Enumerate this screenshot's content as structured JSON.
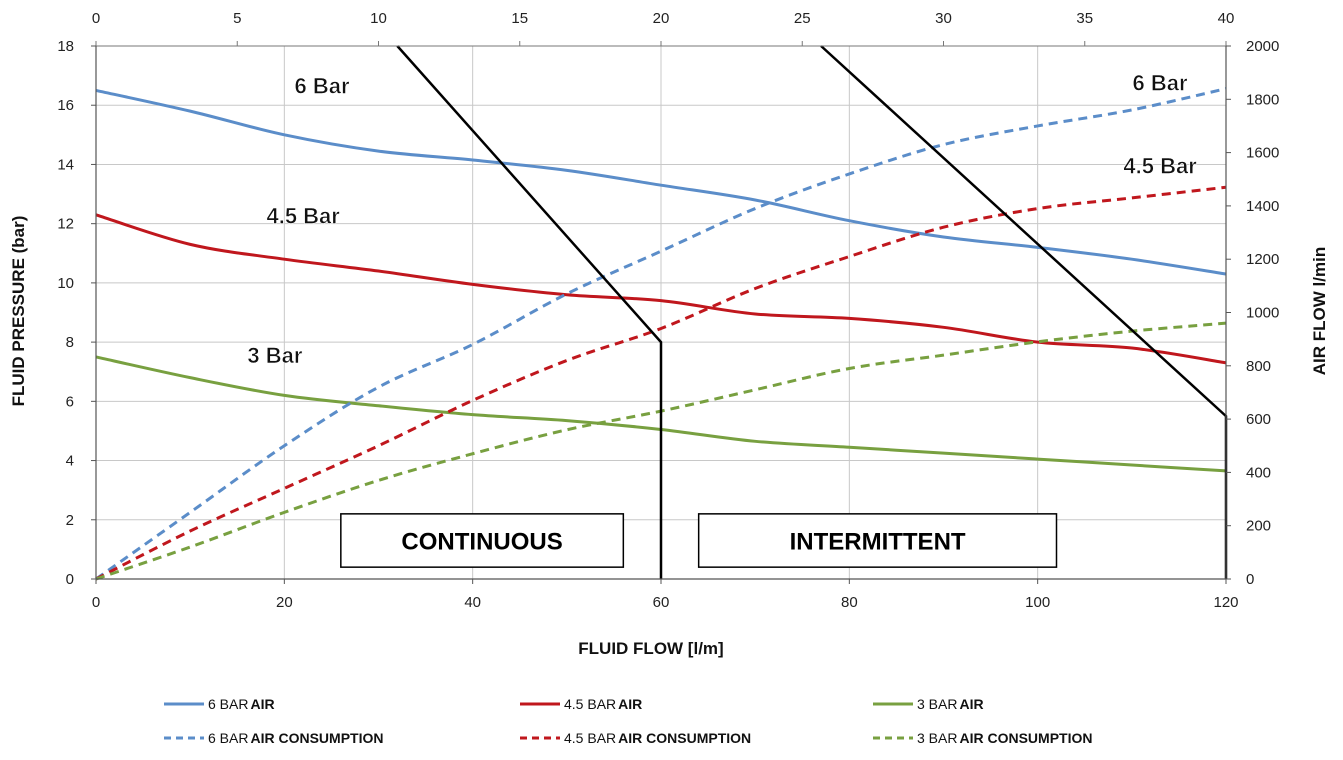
{
  "chart_data": {
    "type": "line",
    "xlabel": "FLUID FLOW [l/m]",
    "ylabel": "FLUID PRESSURE (bar)",
    "y2label": "AIR FLOW l/min",
    "xlim": [
      0,
      120
    ],
    "ylim": [
      0,
      18
    ],
    "y2lim": [
      0,
      2000
    ],
    "x2lim": [
      0,
      40
    ],
    "xticks": [
      "0",
      "20",
      "40",
      "60",
      "80",
      "100",
      "120"
    ],
    "x2ticks": [
      "0",
      "5",
      "10",
      "15",
      "20",
      "25",
      "30",
      "35",
      "40"
    ],
    "yticks": [
      "0",
      "2",
      "4",
      "6",
      "8",
      "10",
      "12",
      "14",
      "16",
      "18"
    ],
    "y2ticks": [
      "0",
      "200",
      "400",
      "600",
      "800",
      "1000",
      "1200",
      "1400",
      "1600",
      "1800",
      "2000"
    ],
    "grid": true,
    "legend_position": "bottom",
    "colors": {
      "blue": "#5B8DC9",
      "red": "#C0171D",
      "green": "#78A040",
      "boundary": "#000000"
    },
    "series": [
      {
        "name": "6 BAR AIR",
        "color": "#5B8DC9",
        "dash": false,
        "axis": "left",
        "points": [
          [
            0,
            16.5
          ],
          [
            10,
            15.8
          ],
          [
            20,
            15.0
          ],
          [
            30,
            14.45
          ],
          [
            40,
            14.15
          ],
          [
            50,
            13.8
          ],
          [
            60,
            13.3
          ],
          [
            70,
            12.8
          ],
          [
            80,
            12.1
          ],
          [
            90,
            11.55
          ],
          [
            100,
            11.2
          ],
          [
            110,
            10.8
          ],
          [
            120,
            10.3
          ]
        ]
      },
      {
        "name": "4.5 BAR AIR",
        "color": "#C0171D",
        "dash": false,
        "axis": "left",
        "points": [
          [
            0,
            12.3
          ],
          [
            10,
            11.3
          ],
          [
            20,
            10.8
          ],
          [
            30,
            10.4
          ],
          [
            40,
            9.95
          ],
          [
            50,
            9.6
          ],
          [
            60,
            9.4
          ],
          [
            70,
            8.95
          ],
          [
            80,
            8.8
          ],
          [
            90,
            8.5
          ],
          [
            100,
            8.0
          ],
          [
            110,
            7.8
          ],
          [
            120,
            7.3
          ]
        ]
      },
      {
        "name": "3 BAR AIR",
        "color": "#78A040",
        "dash": false,
        "axis": "left",
        "points": [
          [
            0,
            7.5
          ],
          [
            10,
            6.8
          ],
          [
            20,
            6.2
          ],
          [
            30,
            5.85
          ],
          [
            40,
            5.55
          ],
          [
            50,
            5.35
          ],
          [
            60,
            5.05
          ],
          [
            70,
            4.65
          ],
          [
            80,
            4.45
          ],
          [
            90,
            4.25
          ],
          [
            100,
            4.05
          ],
          [
            110,
            3.85
          ],
          [
            120,
            3.65
          ]
        ]
      },
      {
        "name": "6 BAR AIR CONSUMPTION",
        "color": "#5B8DC9",
        "dash": true,
        "axis": "right",
        "points": [
          [
            0,
            0
          ],
          [
            10,
            250
          ],
          [
            20,
            500
          ],
          [
            30,
            720
          ],
          [
            40,
            880
          ],
          [
            50,
            1070
          ],
          [
            60,
            1230
          ],
          [
            70,
            1390
          ],
          [
            80,
            1520
          ],
          [
            90,
            1630
          ],
          [
            100,
            1700
          ],
          [
            110,
            1760
          ],
          [
            120,
            1840
          ]
        ]
      },
      {
        "name": "4.5 BAR AIR CONSUMPTION",
        "color": "#C0171D",
        "dash": true,
        "axis": "right",
        "points": [
          [
            0,
            0
          ],
          [
            10,
            180
          ],
          [
            20,
            340
          ],
          [
            30,
            500
          ],
          [
            40,
            670
          ],
          [
            50,
            820
          ],
          [
            60,
            940
          ],
          [
            70,
            1090
          ],
          [
            80,
            1210
          ],
          [
            90,
            1320
          ],
          [
            100,
            1390
          ],
          [
            110,
            1430
          ],
          [
            120,
            1470
          ]
        ]
      },
      {
        "name": "3 BAR AIR CONSUMPTION",
        "color": "#78A040",
        "dash": true,
        "axis": "right",
        "points": [
          [
            0,
            0
          ],
          [
            10,
            120
          ],
          [
            20,
            250
          ],
          [
            30,
            370
          ],
          [
            40,
            470
          ],
          [
            50,
            560
          ],
          [
            60,
            630
          ],
          [
            70,
            710
          ],
          [
            80,
            790
          ],
          [
            90,
            840
          ],
          [
            100,
            890
          ],
          [
            110,
            930
          ],
          [
            120,
            960
          ]
        ]
      }
    ],
    "boundaries": [
      {
        "points": [
          [
            32,
            18
          ],
          [
            60,
            8
          ],
          [
            60,
            0
          ]
        ]
      },
      {
        "points": [
          [
            77,
            18
          ],
          [
            120,
            5.5
          ],
          [
            120,
            0
          ]
        ]
      }
    ],
    "curve_labels": [
      {
        "text": "6 Bar",
        "x": 24,
        "y": 16.4
      },
      {
        "text": "4.5 Bar",
        "x": 22,
        "y": 12.0
      },
      {
        "text": "3 Bar",
        "x": 19,
        "y": 7.3
      },
      {
        "text": "6 Bar",
        "x": 113,
        "y": 16.5
      },
      {
        "text": "4.5 Bar",
        "x": 113,
        "y": 13.7
      }
    ],
    "regions": [
      {
        "label": "CONTINUOUS",
        "x": [
          26,
          56
        ],
        "y": [
          0.4,
          2.2
        ]
      },
      {
        "label": "INTERMITTENT",
        "x": [
          64,
          102
        ],
        "y": [
          0.4,
          2.2
        ]
      }
    ],
    "legend": [
      {
        "prefix": "6 BAR",
        "suffix": "AIR",
        "color": "#5B8DC9",
        "dash": false
      },
      {
        "prefix": "4.5 BAR",
        "suffix": "AIR",
        "color": "#C0171D",
        "dash": false
      },
      {
        "prefix": "3 BAR",
        "suffix": "AIR",
        "color": "#78A040",
        "dash": false
      },
      {
        "prefix": "6 BAR",
        "suffix": "AIR CONSUMPTION",
        "color": "#5B8DC9",
        "dash": true
      },
      {
        "prefix": "4.5 BAR",
        "suffix": "AIR CONSUMPTION",
        "color": "#C0171D",
        "dash": true
      },
      {
        "prefix": "3 BAR",
        "suffix": "AIR CONSUMPTION",
        "color": "#78A040",
        "dash": true
      }
    ]
  }
}
